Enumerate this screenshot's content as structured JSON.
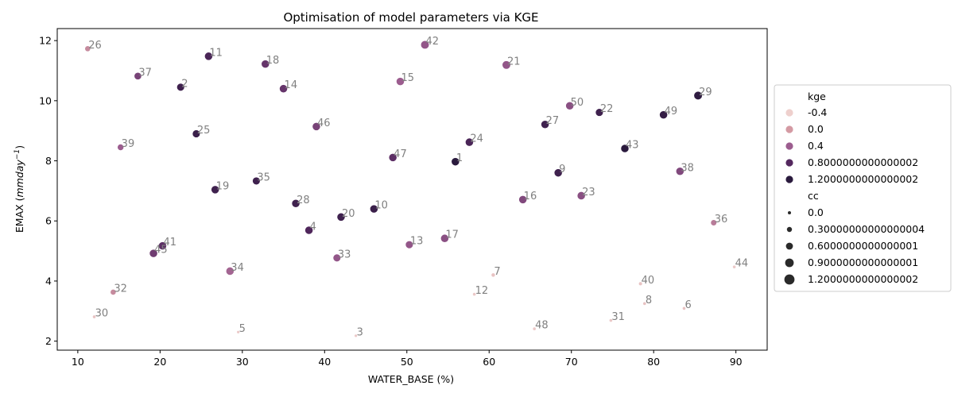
{
  "chart_data": {
    "type": "scatter",
    "title": "Optimisation of model parameters via KGE",
    "xlabel": "WATER_BASE (%)",
    "ylabel": "EMAX (mm day^-1)",
    "xlim": [
      7.5,
      93.8
    ],
    "ylim": [
      1.7,
      12.4
    ],
    "xticks": [
      10,
      20,
      30,
      40,
      50,
      60,
      70,
      80,
      90
    ],
    "yticks": [
      2,
      4,
      6,
      8,
      10,
      12
    ],
    "legend": {
      "position": "right",
      "hue_title": "kge",
      "hue_entries": [
        {
          "label": "-0.4",
          "color": "#eed0cd"
        },
        {
          "label": "0.0",
          "color": "#d49aa3"
        },
        {
          "label": "0.4",
          "color": "#9c5d8f"
        },
        {
          "label": "0.8000000000000002",
          "color": "#54285f"
        },
        {
          "label": "1.2000000000000002",
          "color": "#2a1a3d"
        }
      ],
      "size_title": "cc",
      "size_entries": [
        {
          "label": "0.0"
        },
        {
          "label": "0.30000000000000004"
        },
        {
          "label": "0.6000000000000001"
        },
        {
          "label": "0.9000000000000001"
        },
        {
          "label": "1.2000000000000002"
        }
      ]
    },
    "points": [
      {
        "id": "26",
        "x": 11.2,
        "y": 11.73,
        "kge": 0.1,
        "cc": 0.5
      },
      {
        "id": "37",
        "x": 17.3,
        "y": 10.82,
        "kge": 0.6,
        "cc": 0.75
      },
      {
        "id": "2",
        "x": 22.5,
        "y": 10.45,
        "kge": 1.0,
        "cc": 0.8
      },
      {
        "id": "11",
        "x": 25.9,
        "y": 11.48,
        "kge": 0.9,
        "cc": 0.85
      },
      {
        "id": "18",
        "x": 32.8,
        "y": 11.22,
        "kge": 0.7,
        "cc": 0.85
      },
      {
        "id": "14",
        "x": 35.0,
        "y": 10.4,
        "kge": 0.7,
        "cc": 0.85
      },
      {
        "id": "42",
        "x": 52.2,
        "y": 11.86,
        "kge": 0.45,
        "cc": 0.9
      },
      {
        "id": "21",
        "x": 62.1,
        "y": 11.19,
        "kge": 0.45,
        "cc": 0.9
      },
      {
        "id": "15",
        "x": 49.2,
        "y": 10.64,
        "kge": 0.4,
        "cc": 0.85
      },
      {
        "id": "29",
        "x": 85.4,
        "y": 10.17,
        "kge": 1.15,
        "cc": 0.9
      },
      {
        "id": "50",
        "x": 69.8,
        "y": 9.83,
        "kge": 0.5,
        "cc": 0.85
      },
      {
        "id": "22",
        "x": 73.4,
        "y": 9.61,
        "kge": 1.0,
        "cc": 0.8
      },
      {
        "id": "49",
        "x": 81.2,
        "y": 9.53,
        "kge": 1.1,
        "cc": 0.85
      },
      {
        "id": "27",
        "x": 66.8,
        "y": 9.21,
        "kge": 1.0,
        "cc": 0.85
      },
      {
        "id": "46",
        "x": 39.0,
        "y": 9.14,
        "kge": 0.6,
        "cc": 0.85
      },
      {
        "id": "25",
        "x": 24.4,
        "y": 8.9,
        "kge": 1.05,
        "cc": 0.8
      },
      {
        "id": "24",
        "x": 57.6,
        "y": 8.62,
        "kge": 0.9,
        "cc": 0.85
      },
      {
        "id": "39",
        "x": 15.2,
        "y": 8.45,
        "kge": 0.4,
        "cc": 0.6
      },
      {
        "id": "43",
        "x": 76.5,
        "y": 8.41,
        "kge": 1.2,
        "cc": 0.85
      },
      {
        "id": "47",
        "x": 48.3,
        "y": 8.11,
        "kge": 0.75,
        "cc": 0.85
      },
      {
        "id": "1",
        "x": 55.9,
        "y": 7.97,
        "kge": 1.2,
        "cc": 0.85
      },
      {
        "id": "38",
        "x": 83.2,
        "y": 7.65,
        "kge": 0.55,
        "cc": 0.85
      },
      {
        "id": "9",
        "x": 68.4,
        "y": 7.6,
        "kge": 1.0,
        "cc": 0.85
      },
      {
        "id": "35",
        "x": 31.7,
        "y": 7.33,
        "kge": 1.0,
        "cc": 0.8
      },
      {
        "id": "19",
        "x": 26.7,
        "y": 7.04,
        "kge": 1.0,
        "cc": 0.85
      },
      {
        "id": "23",
        "x": 71.2,
        "y": 6.84,
        "kge": 0.5,
        "cc": 0.85
      },
      {
        "id": "16",
        "x": 64.1,
        "y": 6.71,
        "kge": 0.55,
        "cc": 0.85
      },
      {
        "id": "28",
        "x": 36.5,
        "y": 6.58,
        "kge": 1.0,
        "cc": 0.85
      },
      {
        "id": "10",
        "x": 46.0,
        "y": 6.4,
        "kge": 1.05,
        "cc": 0.85
      },
      {
        "id": "20",
        "x": 42.0,
        "y": 6.13,
        "kge": 1.0,
        "cc": 0.85
      },
      {
        "id": "36",
        "x": 87.3,
        "y": 5.94,
        "kge": 0.2,
        "cc": 0.55
      },
      {
        "id": "4",
        "x": 38.1,
        "y": 5.69,
        "kge": 0.85,
        "cc": 0.85
      },
      {
        "id": "17",
        "x": 54.6,
        "y": 5.42,
        "kge": 0.5,
        "cc": 0.85
      },
      {
        "id": "13",
        "x": 50.3,
        "y": 5.21,
        "kge": 0.45,
        "cc": 0.8
      },
      {
        "id": "41",
        "x": 20.3,
        "y": 5.17,
        "kge": 0.75,
        "cc": 0.85
      },
      {
        "id": "45",
        "x": 19.2,
        "y": 4.92,
        "kge": 0.65,
        "cc": 0.85
      },
      {
        "id": "33",
        "x": 41.5,
        "y": 4.77,
        "kge": 0.45,
        "cc": 0.8
      },
      {
        "id": "34",
        "x": 28.5,
        "y": 4.33,
        "kge": 0.35,
        "cc": 0.85
      },
      {
        "id": "7",
        "x": 60.5,
        "y": 4.2,
        "kge": -0.3,
        "cc": 0.25
      },
      {
        "id": "44",
        "x": 89.8,
        "y": 4.47,
        "kge": -0.35,
        "cc": 0.15
      },
      {
        "id": "40",
        "x": 78.4,
        "y": 3.91,
        "kge": -0.3,
        "cc": 0.2
      },
      {
        "id": "32",
        "x": 14.3,
        "y": 3.63,
        "kge": 0.1,
        "cc": 0.5
      },
      {
        "id": "12",
        "x": 58.2,
        "y": 3.56,
        "kge": -0.35,
        "cc": 0.15
      },
      {
        "id": "8",
        "x": 78.9,
        "y": 3.25,
        "kge": -0.3,
        "cc": 0.15
      },
      {
        "id": "6",
        "x": 83.7,
        "y": 3.09,
        "kge": -0.3,
        "cc": 0.15
      },
      {
        "id": "30",
        "x": 12.0,
        "y": 2.81,
        "kge": -0.3,
        "cc": 0.15
      },
      {
        "id": "31",
        "x": 74.8,
        "y": 2.69,
        "kge": -0.35,
        "cc": 0.15
      },
      {
        "id": "48",
        "x": 65.5,
        "y": 2.41,
        "kge": -0.35,
        "cc": 0.15
      },
      {
        "id": "5",
        "x": 29.5,
        "y": 2.3,
        "kge": -0.35,
        "cc": 0.1
      },
      {
        "id": "3",
        "x": 43.8,
        "y": 2.18,
        "kge": -0.35,
        "cc": 0.1
      }
    ]
  }
}
